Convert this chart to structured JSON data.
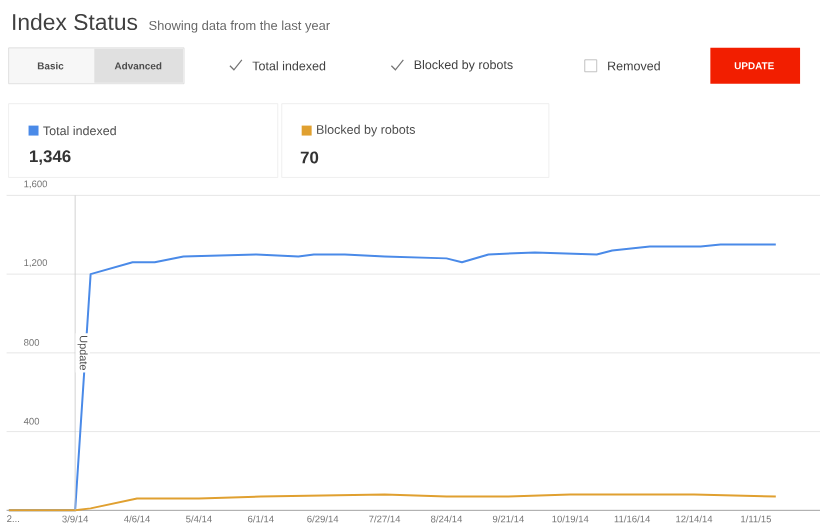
{
  "chart_data": {
    "type": "line",
    "title": "Index Status",
    "subtitle": "Showing data from the last year",
    "annotations": [
      "Basic",
      "Advanced",
      "Removed",
      "UPDATE",
      "1,346",
      "70"
    ],
    "series": [
      {
        "name": "Total indexed",
        "color": "#4a8ae8",
        "x": [
          "2014-02-07",
          "2014-03-09",
          "2014-03-16",
          "2014-04-04",
          "2014-04-14",
          "2014-04-27",
          "2014-05-30",
          "2014-06-18",
          "2014-06-25",
          "2014-07-09",
          "2014-07-27",
          "2014-08-24",
          "2014-08-31",
          "2014-09-12",
          "2014-10-03",
          "2014-10-31",
          "2014-11-07",
          "2014-11-24",
          "2014-12-17",
          "2014-12-26",
          "2015-01-20"
        ],
        "values": [
          0,
          0,
          1200,
          1260,
          1260,
          1290,
          1300,
          1290,
          1300,
          1300,
          1290,
          1280,
          1260,
          1300,
          1310,
          1300,
          1320,
          1340,
          1340,
          1350,
          1350
        ]
      },
      {
        "name": "Blocked by robots",
        "color": "#e0a030",
        "x": [
          "2014-02-07",
          "2014-03-09",
          "2014-03-16",
          "2014-04-06",
          "2014-05-04",
          "2014-06-01",
          "2014-07-27",
          "2014-08-24",
          "2014-09-21",
          "2014-10-19",
          "2014-11-16",
          "2014-12-14",
          "2015-01-20"
        ],
        "values": [
          0,
          0,
          10,
          60,
          60,
          70,
          80,
          70,
          70,
          80,
          80,
          80,
          70
        ]
      }
    ],
    "xlim": [
      "2014-02-06",
      "2015-02-09"
    ],
    "xticks": [
      {
        "value": "2014-02-09",
        "label": "2..."
      },
      {
        "value": "2014-03-09",
        "label": "3/9/14"
      },
      {
        "value": "2014-04-06",
        "label": "4/6/14"
      },
      {
        "value": "2014-05-04",
        "label": "5/4/14"
      },
      {
        "value": "2014-06-01",
        "label": "6/1/14"
      },
      {
        "value": "2014-06-29",
        "label": "6/29/14"
      },
      {
        "value": "2014-07-27",
        "label": "7/27/14"
      },
      {
        "value": "2014-08-24",
        "label": "8/24/14"
      },
      {
        "value": "2014-09-21",
        "label": "9/21/14"
      },
      {
        "value": "2014-10-19",
        "label": "10/19/14"
      },
      {
        "value": "2014-11-16",
        "label": "11/16/14"
      },
      {
        "value": "2014-12-14",
        "label": "12/14/14"
      },
      {
        "value": "2015-01-11",
        "label": "1/11/15"
      }
    ],
    "ylim": [
      0,
      1600
    ],
    "yticks": [
      {
        "value": 0,
        "label": null
      },
      400,
      800,
      {
        "value": 1200,
        "label": "1,200"
      },
      {
        "value": 1600,
        "label": "1,600"
      }
    ],
    "ref_lines": [
      {
        "axis": "x",
        "value": "2014-03-09",
        "label": "Update",
        "color": "#c8c8c8"
      }
    ],
    "grid": "y",
    "legend": "top left",
    "marker": "none",
    "line_style": "solid"
  }
}
